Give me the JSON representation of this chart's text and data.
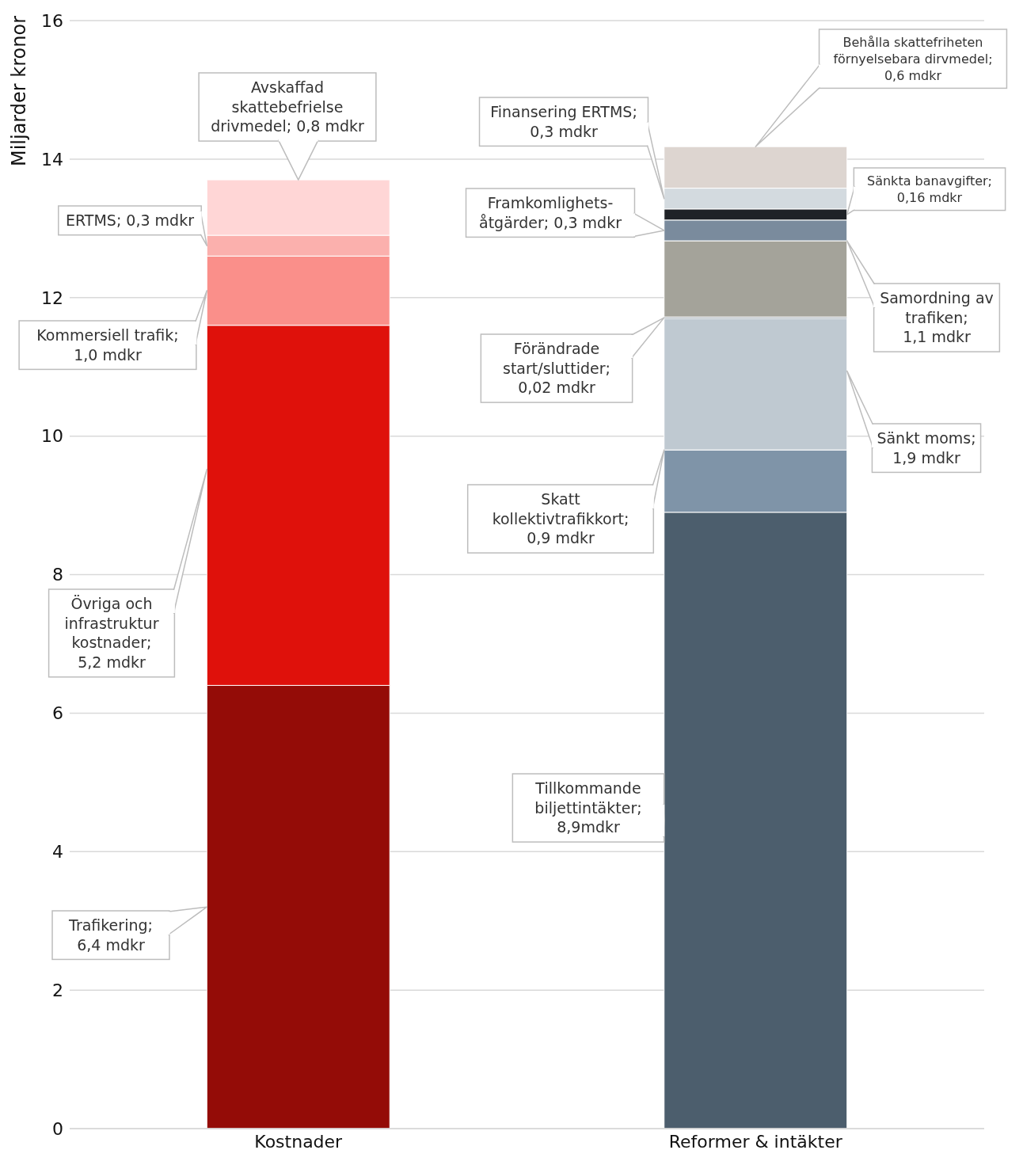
{
  "chart_data": {
    "type": "bar",
    "stacked": true,
    "ylabel": "Miljarder kronor",
    "categories": [
      "Kostnader",
      "Reformer & intäkter"
    ],
    "ylim": [
      0,
      16
    ],
    "yticks": [
      0,
      2,
      4,
      6,
      8,
      10,
      12,
      14,
      16
    ],
    "grid": "y",
    "series": [
      {
        "color": "#940c07",
        "values": [
          6.4,
          null
        ]
      },
      {
        "color": "#df110b",
        "values": [
          5.2,
          null
        ]
      },
      {
        "color": "#fa8f8a",
        "values": [
          1.0,
          null
        ]
      },
      {
        "color": "#fbb0ad",
        "values": [
          0.3,
          null
        ]
      },
      {
        "color": "#ffd6d6",
        "values": [
          0.8,
          null
        ]
      },
      {
        "color": "#4c5e6d",
        "values": [
          null,
          8.9
        ]
      },
      {
        "color": "#7f94a8",
        "values": [
          null,
          0.9
        ]
      },
      {
        "color": "#bfc9d1",
        "values": [
          null,
          1.9
        ]
      },
      {
        "color": "#4c5e6d",
        "values": [
          null,
          0.02
        ]
      },
      {
        "color": "#a4a39a",
        "values": [
          null,
          1.1
        ]
      },
      {
        "color": "#7a8b9d",
        "values": [
          null,
          0.3
        ]
      },
      {
        "color": "#1f2227",
        "values": [
          null,
          0.16
        ]
      },
      {
        "color": "#d3dadf",
        "values": [
          null,
          0.3
        ]
      },
      {
        "color": "#ddd5d0",
        "values": [
          null,
          0.6
        ]
      }
    ],
    "annotations": [
      "Avskaffad\nskattebefrielse\ndrivmedel; 0,8 mdkr",
      "ERTMS; 0,3 mdkr",
      "Kommersiell trafik;\n1,0 mdkr",
      "Övriga och\ninfrastruktur\nkostnader;\n5,2 mdkr",
      "Trafikering;\n6,4 mdkr",
      "Behålla skattefriheten\nförnyelsebara dirvmedel;\n0,6 mdkr",
      "Finansering ERTMS;\n0,3 mdkr",
      "Framkomlighets-\nåtgärder; 0,3 mdkr",
      "Sänkta banavgifter;\n0,16 mdkr",
      "Samordning av\ntrafiken;\n1,1 mdkr",
      "Förändrade\nstart/sluttider;\n0,02 mdkr",
      "Sänkt moms;\n1,9 mdkr",
      "Skatt\nkollektivtrafikkort;\n0,9 mdkr",
      "Tillkommande\nbiljettintäkter;\n8,9mdkr"
    ]
  }
}
